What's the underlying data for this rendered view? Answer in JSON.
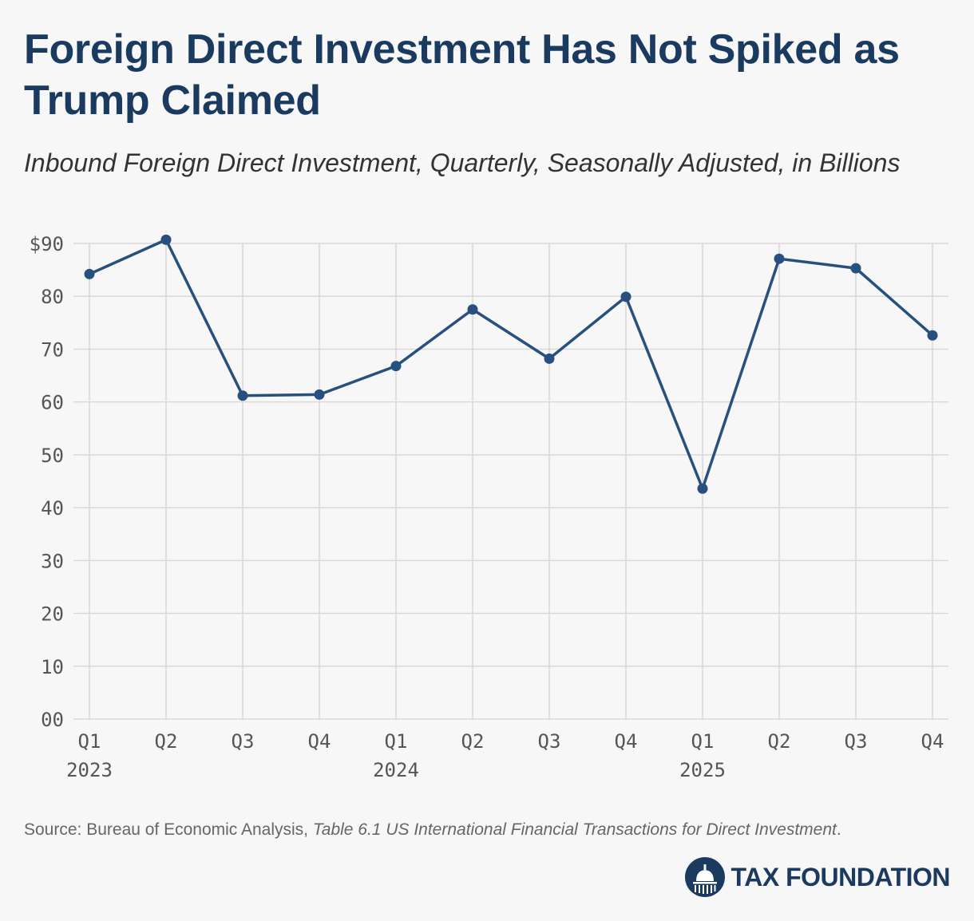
{
  "header": {
    "title": "Foreign Direct Investment Has Not Spiked as Trump Claimed",
    "subtitle": "Inbound Foreign Direct Investment, Quarterly, Seasonally Adjusted, in Billions"
  },
  "chart_data": {
    "type": "line",
    "title": "Foreign Direct Investment Has Not Spiked as Trump Claimed",
    "subtitle": "Inbound Foreign Direct Investment, Quarterly, Seasonally Adjusted, in Billions",
    "xlabel": "",
    "ylabel": "",
    "categories": [
      "Q1",
      "Q2",
      "Q3",
      "Q4",
      "Q1",
      "Q2",
      "Q3",
      "Q4",
      "Q1",
      "Q2",
      "Q3",
      "Q4"
    ],
    "year_labels": [
      {
        "index": 0,
        "label": "2023"
      },
      {
        "index": 4,
        "label": "2024"
      },
      {
        "index": 8,
        "label": "2025"
      }
    ],
    "series": [
      {
        "values": [
          84.2,
          90.7,
          61.2,
          61.4,
          66.8,
          77.5,
          68.2,
          79.9,
          43.6,
          87.1,
          85.3,
          72.6
        ],
        "color": "#27507e"
      }
    ],
    "ylim": [
      0,
      90
    ],
    "yticks": [
      0,
      10,
      20,
      30,
      40,
      50,
      60,
      70,
      80,
      90
    ],
    "ytick_labels": [
      "00",
      "10",
      "20",
      "30",
      "40",
      "50",
      "60",
      "70",
      "80",
      "$90"
    ],
    "grid": true,
    "legend": "none"
  },
  "footer": {
    "source_prefix": "Source: Bureau of Economic Analysis, ",
    "source_title": "Table 6.1 US International Financial Transactions for Direct Investment",
    "source_suffix": "."
  },
  "logo": {
    "text": "TAX FOUNDATION"
  },
  "colors": {
    "title": "#1a3a5f",
    "line": "#27507e",
    "grid": "#d9d9d9",
    "axis_text": "#555555",
    "background": "#f7f7f7"
  }
}
